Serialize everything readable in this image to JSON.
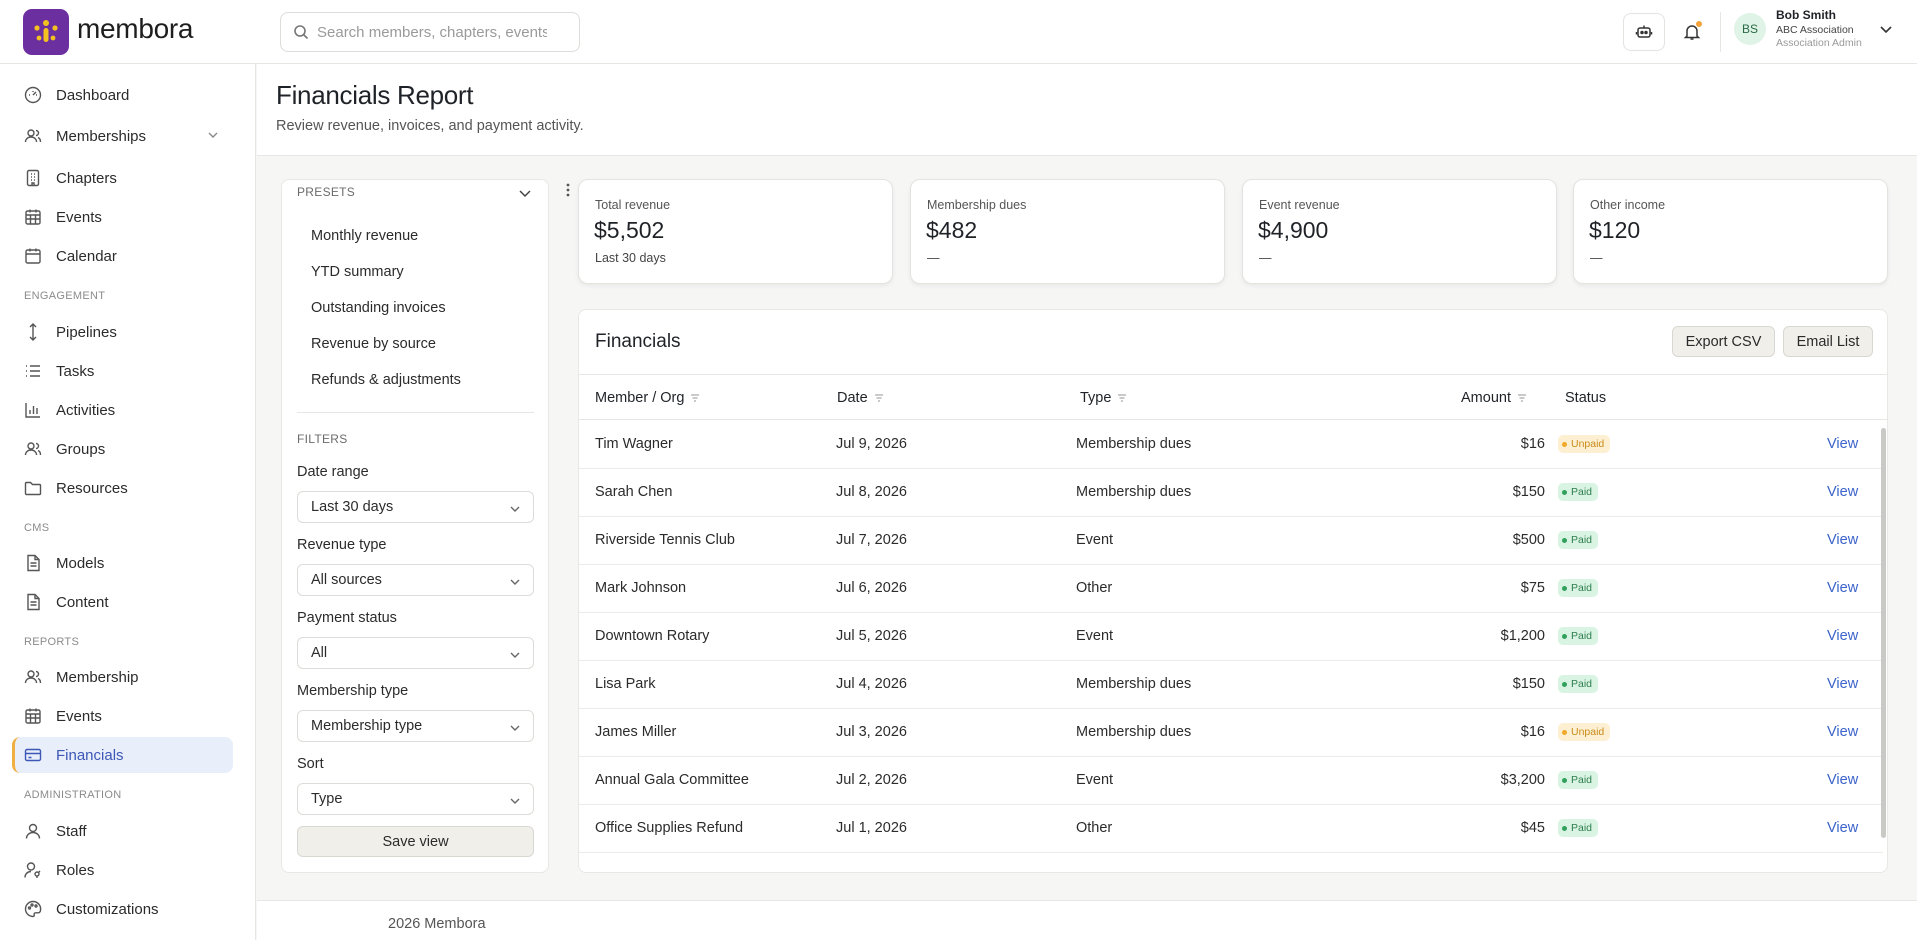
{
  "app": {
    "brand": "membora"
  },
  "search": {
    "placeholder": "Search members, chapters, events"
  },
  "user": {
    "initials": "BS",
    "name": "Bob Smith",
    "org": "ABC Association",
    "role": "Association Admin"
  },
  "sidebar": {
    "items": [
      {
        "label": "Dashboard",
        "icon": "dashboard-icon"
      },
      {
        "label": "Memberships",
        "icon": "users-icon"
      },
      {
        "label": "Chapters",
        "icon": "building-icon"
      },
      {
        "label": "Events",
        "icon": "calendar-grid-icon"
      },
      {
        "label": "Calendar",
        "icon": "calendar-icon"
      },
      {
        "label": "Pipelines",
        "icon": "arrows-vertical-icon"
      },
      {
        "label": "Tasks",
        "icon": "list-icon"
      },
      {
        "label": "Activities",
        "icon": "bar-chart-icon"
      },
      {
        "label": "Groups",
        "icon": "users-icon"
      },
      {
        "label": "Resources",
        "icon": "folder-icon"
      },
      {
        "label": "Models",
        "icon": "document-icon"
      },
      {
        "label": "Content",
        "icon": "document-icon"
      },
      {
        "label": "Membership",
        "icon": "users-icon"
      },
      {
        "label": "Events",
        "icon": "calendar-grid-icon"
      },
      {
        "label": "Financials",
        "icon": "credit-card-icon"
      },
      {
        "label": "Staff",
        "icon": "person-icon"
      },
      {
        "label": "Roles",
        "icon": "person-key-icon"
      },
      {
        "label": "Customizations",
        "icon": "palette-icon"
      }
    ],
    "sections": {
      "engagement": "ENGAGEMENT",
      "cms": "CMS",
      "reports": "REPORTS",
      "administration": "ADMINISTRATION"
    }
  },
  "page": {
    "title": "Financials Report",
    "subtitle": "Review revenue, invoices, and payment activity."
  },
  "presets": {
    "heading": "PRESETS",
    "items": [
      "Monthly revenue",
      "YTD summary",
      "Outstanding invoices",
      "Revenue by source",
      "Refunds & adjustments"
    ]
  },
  "filters": {
    "heading": "FILTERS",
    "fields": [
      {
        "label": "Date range",
        "value": "Last 30 days"
      },
      {
        "label": "Revenue type",
        "value": "All sources"
      },
      {
        "label": "Payment status",
        "value": "All"
      },
      {
        "label": "Membership type",
        "value": "Membership type"
      },
      {
        "label": "Sort",
        "value": "Type"
      }
    ],
    "save_label": "Save view"
  },
  "stats": [
    {
      "label": "Total revenue",
      "value": "$5,502",
      "sub": "Last 30 days"
    },
    {
      "label": "Membership dues",
      "value": "$482",
      "sub": "—"
    },
    {
      "label": "Event revenue",
      "value": "$4,900",
      "sub": "—"
    },
    {
      "label": "Other income",
      "value": "$120",
      "sub": "—"
    }
  ],
  "table": {
    "title": "Financials",
    "export_label": "Export CSV",
    "email_label": "Email List",
    "columns": {
      "member": "Member / Org",
      "date": "Date",
      "type": "Type",
      "amount": "Amount",
      "status": "Status"
    },
    "rows": [
      {
        "member": "Tim Wagner",
        "date": "Jul 9, 2026",
        "type": "Membership dues",
        "amount": "$16",
        "status": "Unpaid",
        "action": "View"
      },
      {
        "member": "Sarah Chen",
        "date": "Jul 8, 2026",
        "type": "Membership dues",
        "amount": "$150",
        "status": "Paid",
        "action": "View"
      },
      {
        "member": "Riverside Tennis Club",
        "date": "Jul 7, 2026",
        "type": "Event",
        "amount": "$500",
        "status": "Paid",
        "action": "View"
      },
      {
        "member": "Mark Johnson",
        "date": "Jul 6, 2026",
        "type": "Other",
        "amount": "$75",
        "status": "Paid",
        "action": "View"
      },
      {
        "member": "Downtown Rotary",
        "date": "Jul 5, 2026",
        "type": "Event",
        "amount": "$1,200",
        "status": "Paid",
        "action": "View"
      },
      {
        "member": "Lisa Park",
        "date": "Jul 4, 2026",
        "type": "Membership dues",
        "amount": "$150",
        "status": "Paid",
        "action": "View"
      },
      {
        "member": "James Miller",
        "date": "Jul 3, 2026",
        "type": "Membership dues",
        "amount": "$16",
        "status": "Unpaid",
        "action": "View"
      },
      {
        "member": "Annual Gala Committee",
        "date": "Jul 2, 2026",
        "type": "Event",
        "amount": "$3,200",
        "status": "Paid",
        "action": "View"
      },
      {
        "member": "Office Supplies Refund",
        "date": "Jul 1, 2026",
        "type": "Other",
        "amount": "$45",
        "status": "Paid",
        "action": "View"
      }
    ]
  },
  "footer": {
    "text": "2026 Membora"
  },
  "colors": {
    "brand": "#6b2fa0",
    "accent": "#3b63c9",
    "active_bg": "#e9eefb",
    "active_border": "#f0b041",
    "paid": "#2e7d4f",
    "unpaid": "#c98a1a"
  }
}
